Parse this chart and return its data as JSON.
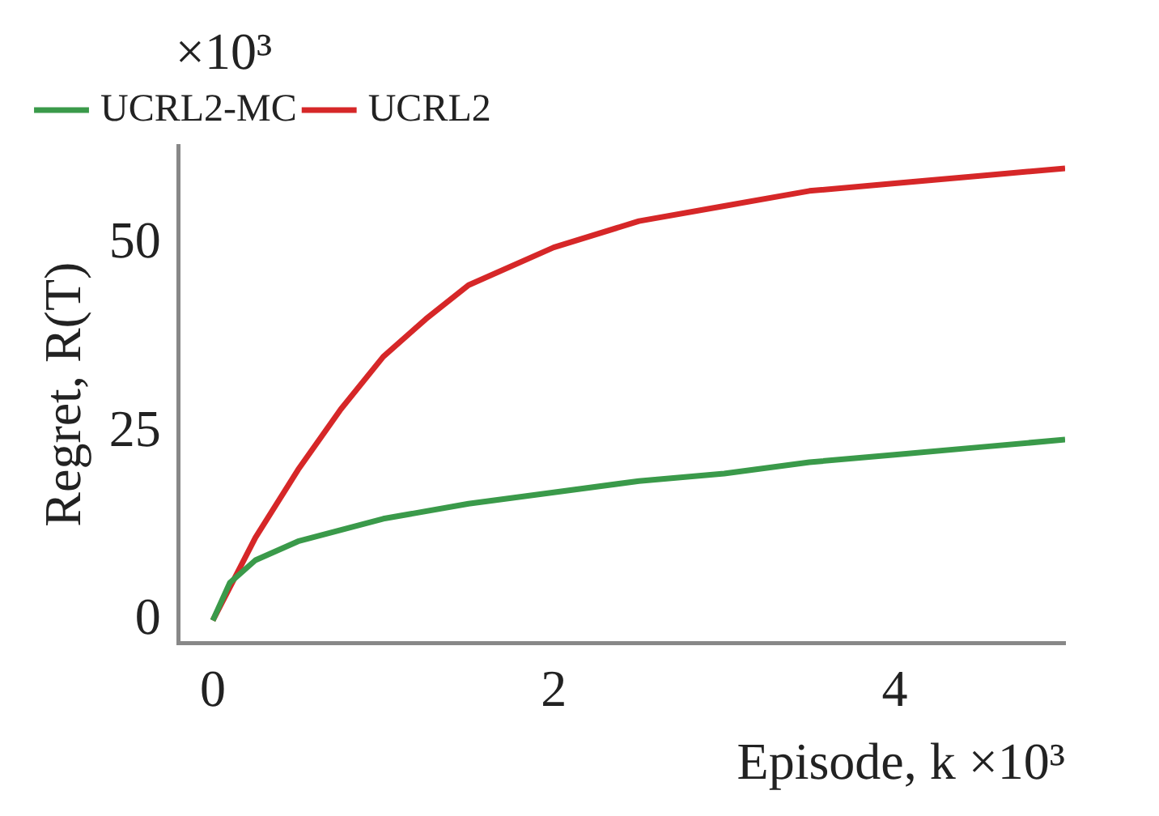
{
  "chart_data": {
    "type": "line",
    "xlabel": "Episode, k ×10³",
    "ylabel": "Regret, R(T)",
    "annotations": [
      "×10³"
    ],
    "xlim": [
      -0.2,
      5.0
    ],
    "xticks": [
      0,
      2,
      4
    ],
    "ylim": [
      -3,
      63
    ],
    "yticks": [
      0,
      25,
      50
    ],
    "grid": false,
    "legend": "top left",
    "marker": "none",
    "line_style": "solid",
    "series": [
      {
        "name": "UCRL2-MC",
        "color": "#3a9a4a",
        "x": [
          0,
          0.1,
          0.25,
          0.5,
          1,
          1.5,
          2,
          2.5,
          3,
          3.5,
          4,
          4.5,
          5
        ],
        "values": [
          0,
          5,
          8,
          10.5,
          13.5,
          15.5,
          17,
          18.5,
          19.5,
          21,
          22,
          23,
          24
        ]
      },
      {
        "name": "UCRL2",
        "color": "#d62728",
        "x": [
          0,
          0.25,
          0.5,
          0.75,
          1,
          1.25,
          1.5,
          2,
          2.5,
          3,
          3.5,
          4,
          4.5,
          5
        ],
        "values": [
          0,
          11,
          20,
          28,
          35,
          40,
          44.5,
          49.5,
          53,
          55,
          57,
          58,
          59,
          60
        ]
      }
    ]
  }
}
